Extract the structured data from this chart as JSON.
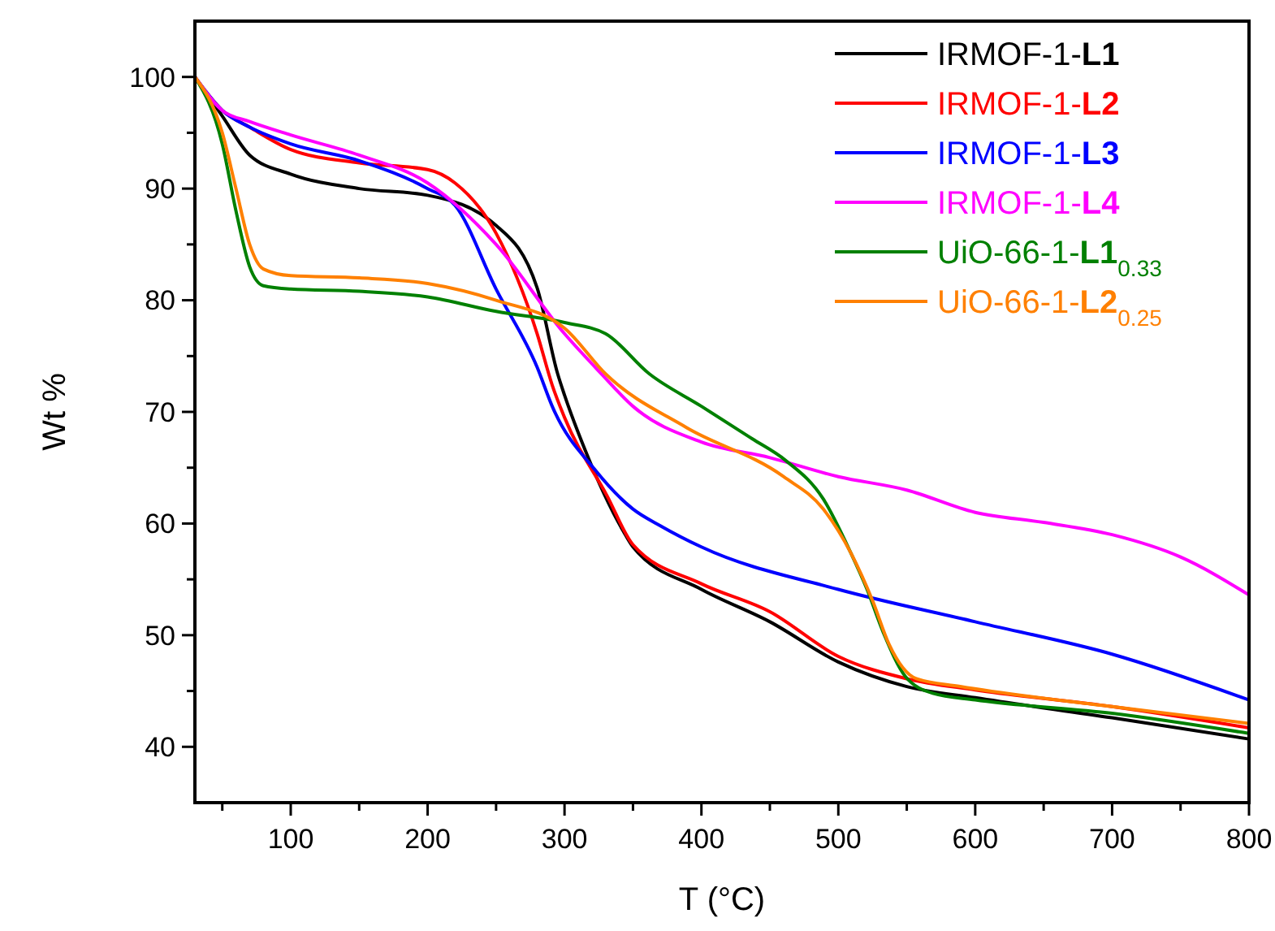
{
  "chart_data": {
    "type": "line",
    "xlabel": "T (°C)",
    "ylabel": "Wt %",
    "xlim": [
      30,
      800
    ],
    "ylim": [
      35,
      105
    ],
    "xticks": [
      {
        "value": 50,
        "label": null
      },
      100,
      {
        "value": 150,
        "label": null
      },
      200,
      {
        "value": 250,
        "label": null
      },
      300,
      {
        "value": 350,
        "label": null
      },
      400,
      {
        "value": 450,
        "label": null
      },
      500,
      {
        "value": 550,
        "label": null
      },
      600,
      {
        "value": 650,
        "label": null
      },
      700,
      {
        "value": 750,
        "label": null
      },
      800
    ],
    "yticks": [
      40,
      {
        "value": 45,
        "label": null
      },
      50,
      {
        "value": 55,
        "label": null
      },
      60,
      {
        "value": 65,
        "label": null
      },
      70,
      {
        "value": 75,
        "label": null
      },
      80,
      {
        "value": 85,
        "label": null
      },
      90,
      {
        "value": 95,
        "label": null
      },
      100
    ],
    "grid": false,
    "legend": "top right",
    "marker": "none",
    "line_style": "solid",
    "series": [
      {
        "name": "IRMOF-1-L1",
        "color": "#000000",
        "x": [
          30,
          50,
          70,
          100,
          150,
          200,
          250,
          280,
          295,
          300,
          315,
          343,
          350,
          400,
          450,
          500,
          550,
          600,
          700,
          800
        ],
        "values": [
          100,
          96.5,
          93,
          91.3,
          90,
          89.4,
          86.7,
          81.1,
          73.4,
          71.5,
          66.6,
          59.3,
          57.9,
          54.1,
          51.2,
          47.6,
          45.4,
          44.4,
          42.6,
          40.7
        ]
      },
      {
        "name": "IRMOF-1-L2",
        "color": "#ff0000",
        "x": [
          30,
          50,
          70,
          100,
          150,
          200,
          220,
          250,
          280,
          291,
          300,
          331,
          350,
          400,
          450,
          500,
          550,
          600,
          700,
          800
        ],
        "values": [
          100,
          97,
          95.5,
          93.5,
          92.3,
          91.7,
          90.5,
          86,
          77,
          72.4,
          69.5,
          62.5,
          58.1,
          54.6,
          52.1,
          48.1,
          46.1,
          45.1,
          43.6,
          41.7
        ]
      },
      {
        "name": "IRMOF-1-L3",
        "color": "#0000ff",
        "x": [
          30,
          50,
          70,
          100,
          150,
          200,
          220,
          250,
          280,
          291,
          323,
          350,
          370,
          400,
          500,
          600,
          700,
          800
        ],
        "values": [
          100,
          97,
          95.5,
          94,
          92.5,
          90,
          88.5,
          81,
          74,
          70.5,
          64.7,
          61.3,
          59.8,
          57.9,
          54.1,
          51.2,
          48.3,
          44.2
        ]
      },
      {
        "name": "IRMOF-1-L4",
        "color": "#ff00ff",
        "x": [
          30,
          50,
          70,
          100,
          150,
          200,
          250,
          300,
          327,
          350,
          400,
          450,
          500,
          550,
          600,
          650,
          700,
          750,
          800
        ],
        "values": [
          100,
          97,
          96,
          94.8,
          93,
          90.5,
          85,
          77,
          73.4,
          70.5,
          67.3,
          65.9,
          64.2,
          63,
          61,
          60.1,
          59,
          57,
          53.6
        ]
      },
      {
        "name": "UiO-66-1-L1$_{0.33}$",
        "color": "#008000",
        "x": [
          30,
          50,
          60,
          70,
          80,
          100,
          150,
          200,
          250,
          300,
          330,
          362,
          400,
          437,
          461,
          489,
          509,
          521,
          533,
          549,
          569,
          600,
          700,
          800
        ],
        "values": [
          100,
          94,
          88,
          83,
          81.3,
          81,
          80.8,
          80.3,
          79,
          78,
          77,
          73.4,
          70.5,
          67.6,
          65.7,
          62.2,
          57.4,
          54.1,
          50.2,
          46.3,
          44.8,
          44.2,
          43,
          41.2
        ]
      },
      {
        "name": "UiO-66-1-L2$_{0.25}$",
        "color": "#ff8000",
        "x": [
          30,
          50,
          60,
          70,
          80,
          100,
          150,
          200,
          250,
          300,
          330,
          389,
          460,
          489,
          509,
          525,
          537,
          557,
          589,
          700,
          800
        ],
        "values": [
          100,
          95,
          90,
          85,
          82.8,
          82.2,
          82,
          81.5,
          80,
          77.5,
          73.4,
          68.6,
          64.2,
          61.3,
          57.4,
          53.1,
          49.2,
          46.1,
          45.4,
          43.6,
          42.1
        ]
      }
    ]
  }
}
